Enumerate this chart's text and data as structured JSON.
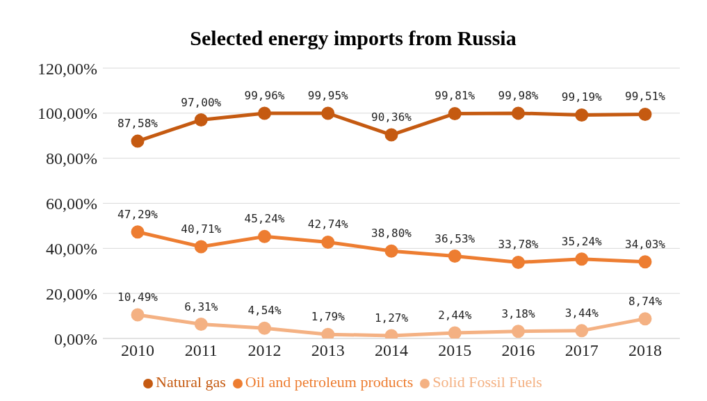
{
  "chart_data": {
    "type": "line",
    "title": "Selected energy imports from Russia",
    "categories": [
      "2010",
      "2011",
      "2012",
      "2013",
      "2014",
      "2015",
      "2016",
      "2017",
      "2018"
    ],
    "series": [
      {
        "name": "Solid Fossil Fuels",
        "color": "#f4b183",
        "values": [
          10.49,
          6.31,
          4.54,
          1.79,
          1.27,
          2.44,
          3.18,
          3.44,
          8.74
        ],
        "value_labels": [
          "10,49%",
          "6,31%",
          "4,54%",
          "1,79%",
          "1,27%",
          "2,44%",
          "3,18%",
          "3,44%",
          "8,74%"
        ]
      },
      {
        "name": "Oil and petroleum products",
        "color": "#ed7d31",
        "values": [
          47.29,
          40.71,
          45.24,
          42.74,
          38.8,
          36.53,
          33.78,
          35.24,
          34.03
        ],
        "value_labels": [
          "47,29%",
          "40,71%",
          "45,24%",
          "42,74%",
          "38,80%",
          "36,53%",
          "33,78%",
          "35,24%",
          "34,03%"
        ]
      },
      {
        "name": "Natural gas",
        "color": "#c55a11",
        "values": [
          87.58,
          97.0,
          99.96,
          99.95,
          90.36,
          99.81,
          99.98,
          99.19,
          99.51
        ],
        "value_labels": [
          "87,58%",
          "97,00%",
          "99,96%",
          "99,95%",
          "90,36%",
          "99,81%",
          "99,98%",
          "99,19%",
          "99,51%"
        ]
      }
    ],
    "ylim": [
      0,
      120
    ],
    "yticks": [
      {
        "value": 0,
        "label": "0,00%"
      },
      {
        "value": 20,
        "label": "20,00%"
      },
      {
        "value": 40,
        "label": "40,00%"
      },
      {
        "value": 60,
        "label": "60,00%"
      },
      {
        "value": 80,
        "label": "80,00%"
      },
      {
        "value": 100,
        "label": "100,00%"
      },
      {
        "value": 120,
        "label": "120,00%"
      }
    ],
    "grid": "y",
    "legend": "bottom",
    "marker": "circle",
    "line_style": "solid"
  }
}
